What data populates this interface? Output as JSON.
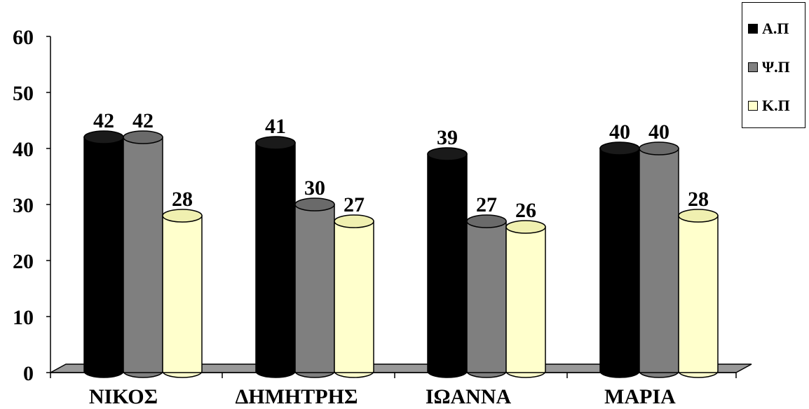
{
  "chart_data": {
    "type": "bar",
    "categories": [
      "ΝΙΚΟΣ",
      "ΔΗΜΗΤΡΗΣ",
      "ΙΩΑΝΝΑ",
      "ΜΑΡΙΑ"
    ],
    "series": [
      {
        "name": "Α.Π",
        "values": [
          42,
          41,
          39,
          40
        ],
        "color": "#000000"
      },
      {
        "name": "Ψ.Π",
        "values": [
          42,
          30,
          27,
          40
        ],
        "color": "#808080"
      },
      {
        "name": "Κ.Π",
        "values": [
          28,
          27,
          26,
          28
        ],
        "color": "#ffffcc"
      }
    ],
    "yticks": [
      "0",
      "10",
      "20",
      "30",
      "40",
      "50",
      "60"
    ],
    "ylim": [
      0,
      60
    ],
    "bar_style": "3d-cylinder",
    "data_labels": true,
    "grid": false,
    "legend": "top-right",
    "floor_color": "#999999"
  }
}
